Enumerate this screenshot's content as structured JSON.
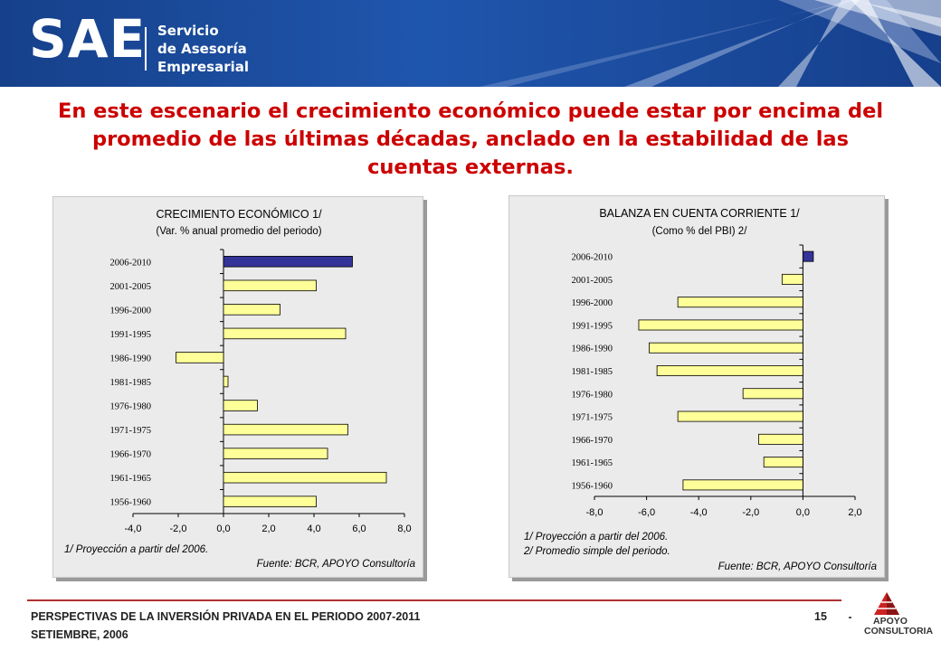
{
  "header": {
    "logo_text": "SAE",
    "logo_line1": "Servicio",
    "logo_line2": "de Asesoría",
    "logo_line3": "Empresarial"
  },
  "headline": {
    "line1": "En este escenario el crecimiento económico puede estar por encima del",
    "line2": "promedio de las últimas décadas, anclado en la estabilidad de las",
    "line3": "cuentas externas."
  },
  "charts": [
    {
      "title": "CRECIMIENTO ECONÓMICO 1/",
      "subtitle": "(Var. % anual promedio del periodo)",
      "note1": "1/ Proyección a partir del 2006.",
      "note2": "",
      "source": "Fuente: BCR, APOYO Consultoría"
    },
    {
      "title": "BALANZA EN CUENTA CORRIENTE 1/",
      "subtitle": "(Como % del PBI) 2/",
      "note1": "1/ Proyección a partir del 2006.",
      "note2": "2/ Promedio simple del periodo.",
      "source": "Fuente: BCR, APOYO Consultoría"
    }
  ],
  "chart_data": [
    {
      "type": "bar",
      "orientation": "horizontal",
      "title": "CRECIMIENTO ECONÓMICO 1/",
      "subtitle": "(Var. % anual promedio del periodo)",
      "categories": [
        "2006-2010",
        "2001-2005",
        "1996-2000",
        "1991-1995",
        "1986-1990",
        "1981-1985",
        "1976-1980",
        "1971-1975",
        "1966-1970",
        "1961-1965",
        "1956-1960"
      ],
      "values": [
        5.7,
        4.1,
        2.5,
        5.4,
        -2.1,
        0.2,
        1.5,
        5.5,
        4.6,
        7.2,
        4.1
      ],
      "highlight_index": 0,
      "xlim": [
        -4.0,
        8.0
      ],
      "xticks": [
        "-4,0",
        "-2,0",
        "0,0",
        "2,0",
        "4,0",
        "6,0",
        "8,0"
      ],
      "colors": {
        "bar": "#ffff99",
        "highlight": "#333399"
      },
      "grid": false
    },
    {
      "type": "bar",
      "orientation": "horizontal",
      "title": "BALANZA EN CUENTA CORRIENTE 1/",
      "subtitle": "(Como % del PBI) 2/",
      "categories": [
        "2006-2010",
        "2001-2005",
        "1996-2000",
        "1991-1995",
        "1986-1990",
        "1981-1985",
        "1976-1980",
        "1971-1975",
        "1966-1970",
        "1961-1965",
        "1956-1960"
      ],
      "values": [
        0.4,
        -0.8,
        -4.8,
        -6.3,
        -5.9,
        -5.6,
        -2.3,
        -4.8,
        -1.7,
        -1.5,
        -4.6
      ],
      "highlight_index": 0,
      "xlim": [
        -8.0,
        2.0
      ],
      "xticks": [
        "-8,0",
        "-6,0",
        "-4,0",
        "-2,0",
        "0,0",
        "2,0"
      ],
      "colors": {
        "bar": "#ffff99",
        "highlight": "#333399"
      },
      "grid": false
    }
  ],
  "footer": {
    "line1": "PERSPECTIVAS DE LA INVERSIÓN PRIVADA EN EL PERIODO 2007-2011",
    "line2": "SETIEMBRE, 2006",
    "page": "15",
    "brand1": "APOYO",
    "brand2": "CONSULTORIA"
  }
}
